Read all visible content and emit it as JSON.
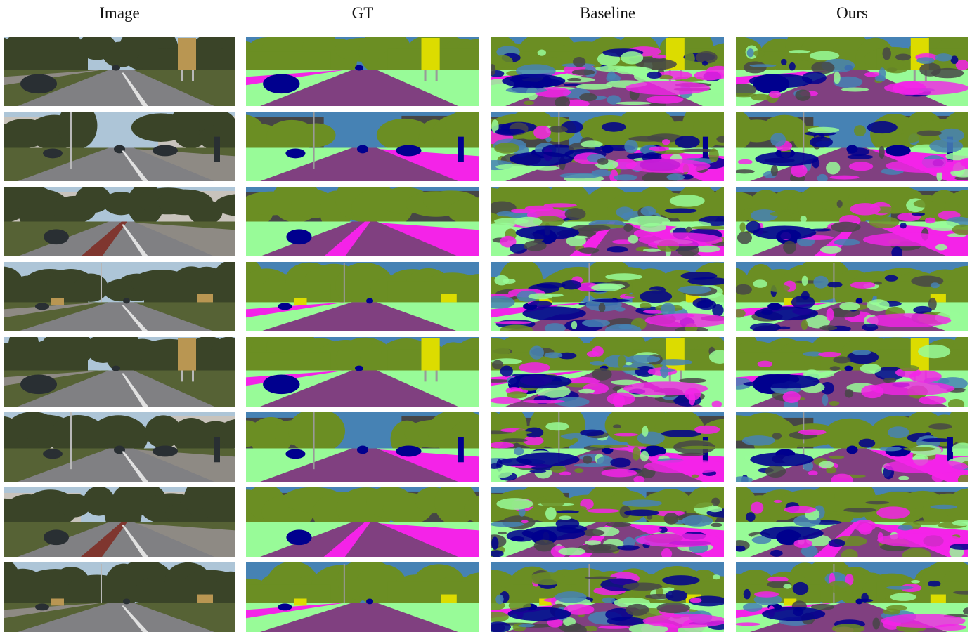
{
  "figure": {
    "columns": [
      {
        "key": "image",
        "label": "Image"
      },
      {
        "key": "gt",
        "label": "GT"
      },
      {
        "key": "baseline",
        "label": "Baseline"
      },
      {
        "key": "ours",
        "label": "Ours"
      }
    ],
    "row_count": 8,
    "rows": [
      {
        "scene": "highway-sign"
      },
      {
        "scene": "town-street"
      },
      {
        "scene": "bike-lane"
      },
      {
        "scene": "treelined-road"
      },
      {
        "scene": "highway-sign"
      },
      {
        "scene": "town-street"
      },
      {
        "scene": "bike-lane"
      },
      {
        "scene": "treelined-road"
      }
    ]
  },
  "palette": {
    "sky": "#4682b4",
    "vegetation": "#6b8e23",
    "road": "#804080",
    "sidewalk": "#f423e8",
    "terrain": "#98fb98",
    "car": "#00008e",
    "building": "#464646",
    "sign": "#dcdc00",
    "pole": "#999999",
    "fence": "#be9999",
    "wall": "#66669c",
    "pedestrian": "#dc143c",
    "rail": "#fa9f9f"
  }
}
